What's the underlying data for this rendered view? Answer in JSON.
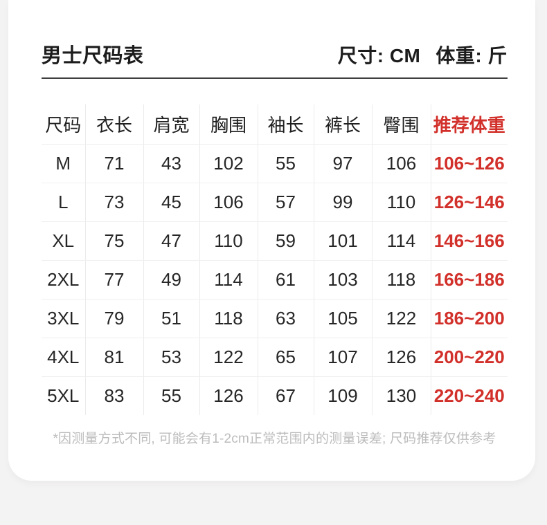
{
  "page": {
    "background_color": "#f4f3f3",
    "card_color": "#ffffff",
    "accent_color": "#d2302a"
  },
  "header": {
    "title": "男士尺码表",
    "size_unit_label": "尺寸: CM",
    "weight_unit_label": "体重: 斤"
  },
  "chart_data": {
    "type": "table",
    "title": "男士尺码表",
    "units": {
      "size": "CM",
      "weight": "斤"
    },
    "columns": [
      "尺码",
      "衣长",
      "肩宽",
      "胸围",
      "袖长",
      "裤长",
      "臀围",
      "推荐体重"
    ],
    "rows": [
      [
        "M",
        "71",
        "43",
        "102",
        "55",
        "97",
        "106",
        "106~126"
      ],
      [
        "L",
        "73",
        "45",
        "106",
        "57",
        "99",
        "110",
        "126~146"
      ],
      [
        "XL",
        "75",
        "47",
        "110",
        "59",
        "101",
        "114",
        "146~166"
      ],
      [
        "2XL",
        "77",
        "49",
        "114",
        "61",
        "103",
        "118",
        "166~186"
      ],
      [
        "3XL",
        "79",
        "51",
        "118",
        "63",
        "105",
        "122",
        "186~200"
      ],
      [
        "4XL",
        "81",
        "53",
        "122",
        "65",
        "107",
        "126",
        "200~220"
      ],
      [
        "5XL",
        "83",
        "55",
        "126",
        "67",
        "109",
        "130",
        "220~240"
      ]
    ],
    "highlight_column": "推荐体重",
    "highlight_color": "#d2302a",
    "footnote": "*因测量方式不同, 可能会有1-2cm正常范围内的测量误差; 尺码推荐仅供参考"
  },
  "footnote": "*因测量方式不同, 可能会有1-2cm正常范围内的测量误差; 尺码推荐仅供参考"
}
